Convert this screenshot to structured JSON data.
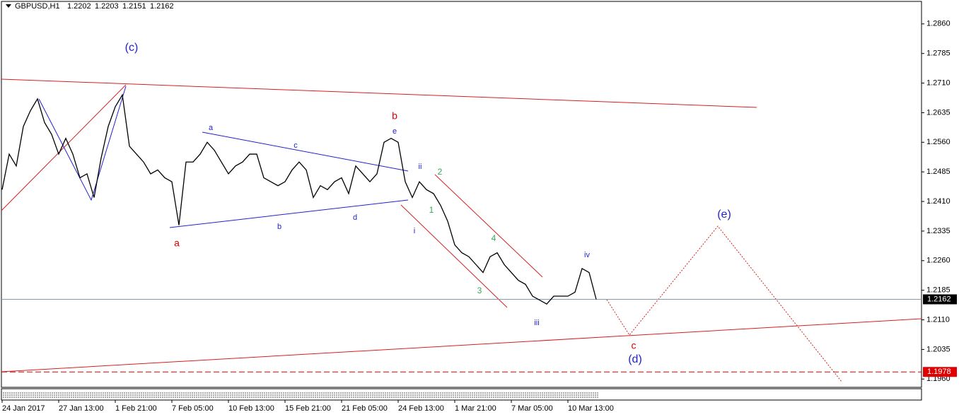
{
  "header": {
    "symbol": "GBPUSD,H1",
    "open": 1.2202,
    "high": 1.2203,
    "low": 1.2151,
    "close": 1.2162
  },
  "chart_data": {
    "type": "line",
    "color": "#000000",
    "categories": [
      "24 Jan 2017",
      null,
      null,
      null,
      null,
      null,
      null,
      null,
      "27 Jan 13:00",
      null,
      null,
      null,
      null,
      null,
      null,
      null,
      "1 Feb 21:00",
      null,
      null,
      null,
      null,
      null,
      null,
      null,
      "7 Feb 05:00",
      null,
      null,
      null,
      null,
      null,
      null,
      null,
      "10 Feb 13:00",
      null,
      null,
      null,
      null,
      null,
      null,
      null,
      "15 Feb 21:00",
      null,
      null,
      null,
      null,
      null,
      null,
      null,
      "21 Feb 05:00",
      null,
      null,
      null,
      null,
      null,
      null,
      null,
      "24 Feb 13:00",
      null,
      null,
      null,
      null,
      null,
      null,
      null,
      "1 Mar 21:00",
      null,
      null,
      null,
      null,
      null,
      null,
      null,
      "7 Mar 05:00",
      null,
      null,
      null,
      null,
      null,
      null,
      null,
      "10 Mar 13:00",
      null,
      null,
      null,
      null
    ],
    "values": [
      1.244,
      1.253,
      1.25,
      1.26,
      1.264,
      1.267,
      1.261,
      1.258,
      1.253,
      1.257,
      1.253,
      1.247,
      1.248,
      1.242,
      1.252,
      1.26,
      1.265,
      1.268,
      1.255,
      1.253,
      1.251,
      1.248,
      1.249,
      1.247,
      1.246,
      1.235,
      1.251,
      1.251,
      1.253,
      1.256,
      1.254,
      1.251,
      1.248,
      1.25,
      1.251,
      1.253,
      1.253,
      1.247,
      1.246,
      1.245,
      1.246,
      1.249,
      1.251,
      1.249,
      1.242,
      1.245,
      1.244,
      1.246,
      1.247,
      1.243,
      1.25,
      1.248,
      1.246,
      1.248,
      1.256,
      1.257,
      1.256,
      1.246,
      1.242,
      1.246,
      1.244,
      1.243,
      1.24,
      1.236,
      1.23,
      1.228,
      1.227,
      1.225,
      1.223,
      1.227,
      1.228,
      1.225,
      1.223,
      1.221,
      1.22,
      1.217,
      1.216,
      1.215,
      1.217,
      1.217,
      1.217,
      1.218,
      1.224,
      1.223,
      1.2162
    ],
    "ylim": [
      1.1939,
      1.2917
    ],
    "yticks": [
      {
        "value": 1.286,
        "label": "1.2860"
      },
      {
        "value": 1.2785,
        "label": "1.2785"
      },
      {
        "value": 1.271,
        "label": "1.2710"
      },
      {
        "value": 1.2635,
        "label": "1.2635"
      },
      {
        "value": 1.256,
        "label": "1.2560"
      },
      {
        "value": 1.2485,
        "label": "1.2485"
      },
      {
        "value": 1.241,
        "label": "1.2410"
      },
      {
        "value": 1.2335,
        "label": "1.2335"
      },
      {
        "value": 1.226,
        "label": "1.2260"
      },
      {
        "value": 1.2185,
        "label": "1.2185"
      },
      {
        "value": 1.211,
        "label": "1.2110"
      },
      {
        "value": 1.2035,
        "label": "1.2035"
      },
      {
        "value": 1.196,
        "label": "1.1960"
      }
    ],
    "current_price": 1.2162,
    "level": 1.1978,
    "annotations": [
      {
        "text": "(c)",
        "color": "#2222cc"
      },
      {
        "text": "a",
        "color": "#e00000"
      },
      {
        "text": "b",
        "color": "#e00000"
      },
      {
        "text": "e",
        "color": "#2222cc"
      },
      {
        "text": "a",
        "color": "#2222cc"
      },
      {
        "text": "c",
        "color": "#2222cc"
      },
      {
        "text": "b",
        "color": "#2222cc"
      },
      {
        "text": "d",
        "color": "#2222cc"
      },
      {
        "text": "ii",
        "color": "#2222cc"
      },
      {
        "text": "i",
        "color": "#2222cc"
      },
      {
        "text": "2",
        "color": "#33aa55"
      },
      {
        "text": "1",
        "color": "#33aa55"
      },
      {
        "text": "4",
        "color": "#33aa55"
      },
      {
        "text": "3",
        "color": "#33aa55"
      },
      {
        "text": "iii",
        "color": "#2222cc"
      },
      {
        "text": "iv",
        "color": "#2222cc"
      },
      {
        "text": "(e)",
        "color": "#2222cc"
      },
      {
        "text": "c",
        "color": "#e00000"
      },
      {
        "text": "(d)",
        "color": "#2222cc"
      }
    ]
  }
}
